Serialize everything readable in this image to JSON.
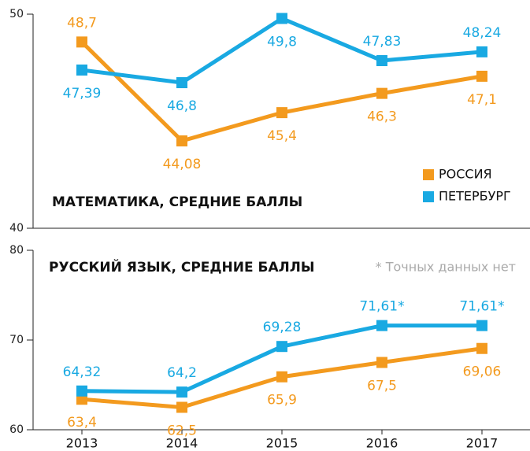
{
  "chart_data": [
    {
      "type": "line",
      "title": "МАТЕМАТИКА, СРЕДНИЕ БАЛЛЫ",
      "ylim": [
        40,
        50
      ],
      "yticks": [
        40,
        50
      ],
      "legend": "right",
      "series": [
        {
          "name": "РОССИЯ",
          "color": "#f39a1e",
          "values": [
            48.7,
            44.08,
            45.4,
            46.3,
            47.1
          ],
          "value_labels": [
            "48,7",
            "44,08",
            "45,4",
            "46,3",
            "47,1"
          ]
        },
        {
          "name": "ПЕТЕРБУРГ",
          "color": "#19a9e2",
          "values": [
            47.39,
            46.8,
            49.8,
            47.83,
            48.24
          ],
          "value_labels": [
            "47,39",
            "46,8",
            "49,8",
            "47,83",
            "48,24"
          ]
        }
      ]
    },
    {
      "type": "line",
      "title": "РУССКИЙ ЯЗЫК, СРЕДНИЕ БАЛЛЫ",
      "annotation": "* Точных данных нет",
      "categories": [
        "2013",
        "2014",
        "2015",
        "2016",
        "2017"
      ],
      "ylim": [
        60,
        80
      ],
      "yticks": [
        60,
        70,
        80
      ],
      "series": [
        {
          "name": "РОССИЯ",
          "color": "#f39a1e",
          "values": [
            63.4,
            62.5,
            65.9,
            67.5,
            69.06
          ],
          "value_labels": [
            "63,4",
            "62,5",
            "65,9",
            "67,5",
            "69,06"
          ]
        },
        {
          "name": "ПЕТЕРБУРГ",
          "color": "#19a9e2",
          "values": [
            64.32,
            64.2,
            69.28,
            71.61,
            71.61
          ],
          "value_labels": [
            "64,32",
            "64,2",
            "69,28",
            "71,61*",
            "71,61*"
          ]
        }
      ]
    }
  ]
}
